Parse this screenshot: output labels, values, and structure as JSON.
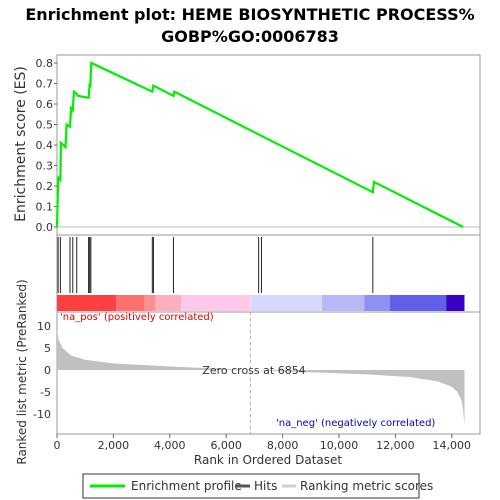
{
  "chart_data": [
    {
      "type": "line",
      "title_line1": "Enrichment plot: HEME BIOSYNTHETIC PROCESS%",
      "title_line2": "GOBP%GO:0006783",
      "ylabel": "Enrichment score (ES)",
      "ylim": [
        0.0,
        0.85
      ],
      "yticks": [
        "0.0",
        "0.1",
        "0.2",
        "0.3",
        "0.4",
        "0.5",
        "0.6",
        "0.7",
        "0.8"
      ],
      "xlim": [
        0,
        15000
      ],
      "series": [
        {
          "name": "Enrichment profile",
          "color": "#00ee00",
          "x": [
            0,
            40,
            60,
            120,
            140,
            300,
            340,
            460,
            500,
            560,
            600,
            700,
            740,
            1120,
            1160,
            1180,
            1200,
            1220,
            3380,
            3420,
            4130,
            4160,
            11200,
            11240,
            14400
          ],
          "y": [
            0.0,
            0.22,
            0.24,
            0.23,
            0.41,
            0.39,
            0.5,
            0.49,
            0.58,
            0.57,
            0.66,
            0.65,
            0.64,
            0.63,
            0.7,
            0.68,
            0.75,
            0.8,
            0.66,
            0.69,
            0.64,
            0.66,
            0.17,
            0.22,
            0.0
          ]
        }
      ]
    },
    {
      "type": "hits",
      "hit_ranks": [
        40,
        120,
        460,
        560,
        700,
        1120,
        1160,
        1200,
        3380,
        3420,
        4130,
        7150,
        7250,
        11200
      ]
    },
    {
      "type": "area",
      "xlabel": "Rank in Ordered Dataset",
      "ylabel": "Ranked list metric (PreRanked)",
      "xticks": [
        "0",
        "2,000",
        "4,000",
        "6,000",
        "8,000",
        "10,000",
        "12,000",
        "14,000"
      ],
      "yticks": [
        "10",
        "5",
        "0",
        "-5",
        "-10"
      ],
      "ylim": [
        -13,
        11
      ],
      "zero_cross_label": "Zero cross at 6854",
      "zero_cross": 6854,
      "pos_label": "'na_pos' (positively correlated)",
      "neg_label": "'na_neg' (negatively correlated)",
      "metric_x": [
        0,
        50,
        200,
        500,
        1000,
        2000,
        4000,
        6854,
        9000,
        11000,
        12500,
        13500,
        14000,
        14200,
        14350,
        14400,
        14450
      ],
      "metric_y": [
        9.5,
        7.0,
        5.0,
        3.3,
        2.3,
        1.5,
        0.8,
        0.0,
        -0.5,
        -1.0,
        -1.6,
        -2.6,
        -3.8,
        -5.0,
        -7.0,
        -9.0,
        -12.5
      ],
      "fill_color": "#c0c0c0"
    }
  ],
  "legend": {
    "items": [
      {
        "label": "Enrichment profile",
        "color": "#00ee00"
      },
      {
        "label": "Hits",
        "color": "#555555"
      },
      {
        "label": "Ranking metric scores",
        "color": "#d0d0d0"
      }
    ]
  },
  "heat_bar": {
    "segments": [
      {
        "to": 2100,
        "color": "#ff4040"
      },
      {
        "to": 3100,
        "color": "#ff7070"
      },
      {
        "to": 3500,
        "color": "#ff9090"
      },
      {
        "to": 4400,
        "color": "#ffb0c0"
      },
      {
        "to": 6854,
        "color": "#ffc8e8"
      },
      {
        "to": 9400,
        "color": "#d8d8ff"
      },
      {
        "to": 10900,
        "color": "#b8b8f8"
      },
      {
        "to": 11800,
        "color": "#9090f0"
      },
      {
        "to": 13800,
        "color": "#6060e8"
      },
      {
        "to": 14450,
        "color": "#3a00c8"
      }
    ]
  }
}
